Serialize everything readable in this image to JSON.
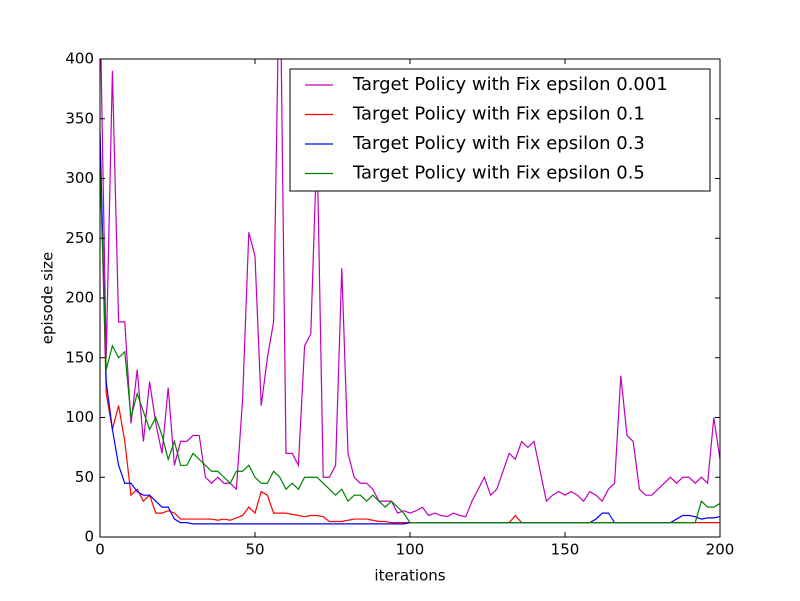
{
  "chart_data": {
    "type": "line",
    "xlabel": "iterations",
    "ylabel": "episode size",
    "xlim": [
      0,
      200
    ],
    "ylim": [
      0,
      400
    ],
    "xticks": [
      0,
      50,
      100,
      150,
      200
    ],
    "yticks": [
      0,
      50,
      100,
      150,
      200,
      250,
      300,
      350,
      400
    ],
    "grid": false,
    "legend": "upper right",
    "x": [
      0,
      2,
      4,
      6,
      8,
      10,
      12,
      14,
      16,
      18,
      20,
      22,
      24,
      26,
      28,
      30,
      32,
      34,
      36,
      38,
      40,
      42,
      44,
      46,
      48,
      50,
      52,
      54,
      56,
      58,
      60,
      62,
      64,
      66,
      68,
      70,
      72,
      74,
      76,
      78,
      80,
      82,
      84,
      86,
      88,
      90,
      92,
      94,
      96,
      98,
      100,
      102,
      104,
      106,
      108,
      110,
      112,
      114,
      116,
      118,
      120,
      122,
      124,
      126,
      128,
      130,
      132,
      134,
      136,
      138,
      140,
      142,
      144,
      146,
      148,
      150,
      152,
      154,
      156,
      158,
      160,
      162,
      164,
      166,
      168,
      170,
      172,
      174,
      176,
      178,
      180,
      182,
      184,
      186,
      188,
      190,
      192,
      194,
      196,
      198,
      200
    ],
    "series": [
      {
        "name": "Target Policy with Fix epsilon 0.001",
        "color": "#bf00bf",
        "values": [
          450,
          150,
          390,
          180,
          180,
          95,
          140,
          80,
          130,
          95,
          70,
          125,
          60,
          80,
          80,
          85,
          85,
          50,
          45,
          50,
          45,
          45,
          40,
          115,
          255,
          235,
          110,
          150,
          180,
          500,
          70,
          70,
          60,
          160,
          170,
          330,
          50,
          50,
          60,
          225,
          70,
          50,
          45,
          45,
          40,
          30,
          30,
          30,
          20,
          22,
          20,
          22,
          25,
          18,
          20,
          18,
          17,
          20,
          18,
          17,
          30,
          40,
          50,
          35,
          40,
          55,
          70,
          65,
          80,
          75,
          80,
          55,
          30,
          35,
          38,
          35,
          38,
          35,
          30,
          38,
          35,
          30,
          40,
          45,
          135,
          85,
          80,
          40,
          35,
          35,
          40,
          45,
          50,
          45,
          50,
          50,
          45,
          50,
          45,
          100,
          65
        ]
      },
      {
        "name": "Target Policy with Fix epsilon 0.1",
        "color": "#ff0000",
        "values": [
          330,
          120,
          90,
          110,
          80,
          35,
          40,
          30,
          35,
          20,
          20,
          22,
          20,
          15,
          15,
          15,
          15,
          15,
          15,
          14,
          15,
          14,
          16,
          18,
          25,
          20,
          38,
          35,
          20,
          20,
          20,
          19,
          18,
          17,
          18,
          18,
          17,
          13,
          13,
          13,
          14,
          15,
          15,
          15,
          14,
          13,
          13,
          12,
          12,
          12,
          12,
          12,
          12,
          12,
          12,
          12,
          12,
          12,
          12,
          12,
          12,
          12,
          12,
          12,
          12,
          12,
          12,
          18,
          12,
          12,
          12,
          12,
          12,
          12,
          12,
          12,
          12,
          12,
          12,
          12,
          12,
          12,
          12,
          12,
          12,
          12,
          12,
          12,
          12,
          12,
          12,
          12,
          12,
          12,
          12,
          12,
          12,
          12,
          12,
          12,
          12
        ]
      },
      {
        "name": "Target Policy with Fix epsilon 0.3",
        "color": "#0000ff",
        "values": [
          340,
          130,
          90,
          60,
          45,
          45,
          38,
          35,
          35,
          30,
          25,
          25,
          15,
          12,
          12,
          11,
          11,
          11,
          11,
          11,
          11,
          11,
          11,
          11,
          11,
          11,
          11,
          11,
          11,
          11,
          11,
          11,
          11,
          11,
          11,
          11,
          11,
          11,
          11,
          11,
          11,
          11,
          11,
          11,
          11,
          11,
          11,
          11,
          11,
          11,
          12,
          12,
          12,
          12,
          12,
          12,
          12,
          12,
          12,
          12,
          12,
          12,
          12,
          12,
          12,
          12,
          12,
          12,
          12,
          12,
          12,
          12,
          12,
          12,
          12,
          12,
          12,
          12,
          12,
          12,
          15,
          20,
          20,
          12,
          12,
          12,
          12,
          12,
          12,
          12,
          12,
          12,
          12,
          15,
          18,
          18,
          17,
          15,
          16,
          16,
          17
        ]
      },
      {
        "name": "Target Policy with Fix epsilon 0.5",
        "color": "#008000",
        "values": [
          310,
          140,
          160,
          150,
          155,
          100,
          120,
          105,
          90,
          100,
          85,
          65,
          80,
          60,
          60,
          70,
          65,
          60,
          55,
          55,
          50,
          45,
          55,
          55,
          60,
          50,
          45,
          45,
          55,
          50,
          40,
          45,
          40,
          50,
          50,
          50,
          45,
          40,
          35,
          40,
          30,
          35,
          35,
          30,
          35,
          30,
          25,
          30,
          25,
          20,
          12,
          12,
          12,
          12,
          12,
          12,
          12,
          12,
          12,
          12,
          12,
          12,
          12,
          12,
          12,
          12,
          12,
          12,
          12,
          12,
          12,
          12,
          12,
          12,
          12,
          12,
          12,
          12,
          12,
          12,
          12,
          12,
          12,
          12,
          12,
          12,
          12,
          12,
          12,
          12,
          12,
          12,
          12,
          12,
          12,
          12,
          12,
          30,
          25,
          25,
          28
        ]
      }
    ]
  }
}
